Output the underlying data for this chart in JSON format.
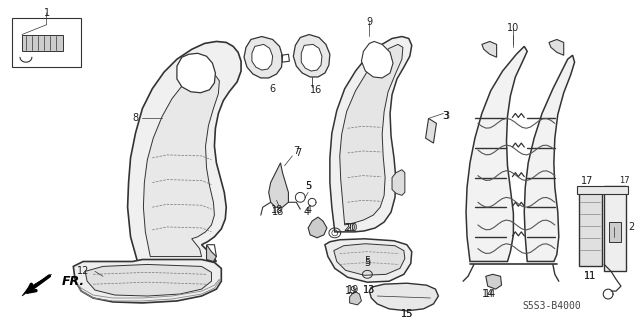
{
  "diagram_code": "S5S3-B4000",
  "background_color": "#ffffff",
  "line_color": "#333333",
  "figwidth": 6.4,
  "figheight": 3.19,
  "dpi": 100
}
